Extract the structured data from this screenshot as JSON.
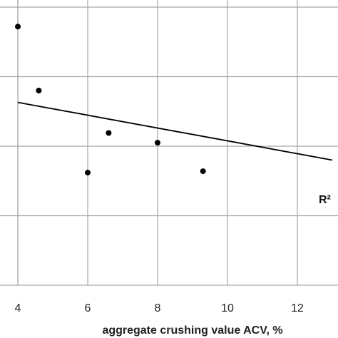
{
  "chart_data": {
    "type": "scatter",
    "xlabel": "aggregate crushing value ACV, %",
    "xlim": [
      4,
      13
    ],
    "x_ticks": [
      4,
      6,
      8,
      10,
      12
    ],
    "x_tick_labels": [
      "4",
      "6",
      "8",
      "10",
      "12"
    ],
    "ylim": [
      0,
      4
    ],
    "y_gridlines": [
      0,
      1,
      2,
      3,
      4
    ],
    "grid": true,
    "points": [
      {
        "x": 4.0,
        "y": 3.72
      },
      {
        "x": 4.6,
        "y": 2.8
      },
      {
        "x": 6.0,
        "y": 1.62
      },
      {
        "x": 6.6,
        "y": 2.19
      },
      {
        "x": 8.0,
        "y": 2.05
      },
      {
        "x": 9.3,
        "y": 1.64
      }
    ],
    "trendline": {
      "type": "linear",
      "x": [
        4.0,
        13.0
      ],
      "y": [
        2.63,
        1.8
      ]
    },
    "annotation": "R²",
    "colors": {
      "points": "#000000",
      "trendline": "#000000",
      "grid": "#a6a6a6"
    }
  }
}
